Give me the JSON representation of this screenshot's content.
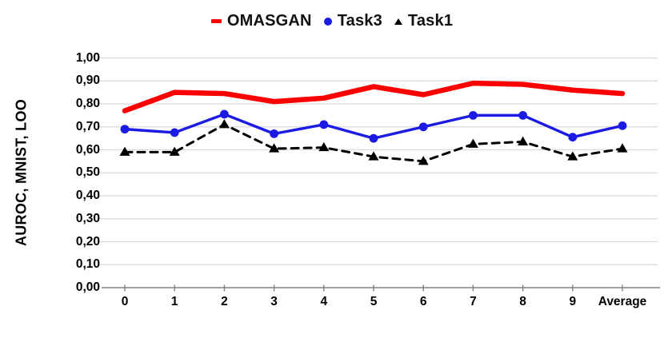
{
  "legend": {
    "items": [
      {
        "label": "OMASGAN",
        "marker": "dash-icon"
      },
      {
        "label": "Task3",
        "marker": "circle-icon"
      },
      {
        "label": "Task1",
        "marker": "triangle-icon"
      }
    ]
  },
  "colors": {
    "omasgan": "#FB0000",
    "task3": "#1B1BE3",
    "task1": "#000000",
    "gridline": "#D9D9D9",
    "axis": "#808080",
    "text": "#000000"
  },
  "chart_data": {
    "type": "line",
    "title": "",
    "xlabel": "",
    "ylabel": "AUROC, MNIST, LOO",
    "categories": [
      "0",
      "1",
      "2",
      "3",
      "4",
      "5",
      "6",
      "7",
      "8",
      "9",
      "Average"
    ],
    "series": [
      {
        "name": "OMASGAN",
        "color": "#FB0000",
        "line": "solid-thick",
        "marker": "none",
        "values": [
          0.77,
          0.85,
          0.845,
          0.81,
          0.825,
          0.875,
          0.84,
          0.89,
          0.885,
          0.86,
          0.845
        ]
      },
      {
        "name": "Task3",
        "color": "#1B1BE3",
        "line": "solid",
        "marker": "circle",
        "values": [
          0.69,
          0.675,
          0.755,
          0.67,
          0.71,
          0.65,
          0.7,
          0.75,
          0.75,
          0.655,
          0.705
        ]
      },
      {
        "name": "Task1",
        "color": "#000000",
        "line": "dashed",
        "marker": "triangle",
        "values": [
          0.59,
          0.59,
          0.71,
          0.605,
          0.61,
          0.57,
          0.55,
          0.625,
          0.635,
          0.57,
          0.605
        ]
      }
    ],
    "ylim": [
      0.0,
      1.0
    ],
    "ytick_step": 0.1,
    "ytick_labels": [
      "0,00",
      "0,10",
      "0,20",
      "0,30",
      "0,40",
      "0,50",
      "0,60",
      "0,70",
      "0,80",
      "0,90",
      "1,00"
    ],
    "grid": true,
    "legend_position": "top"
  }
}
